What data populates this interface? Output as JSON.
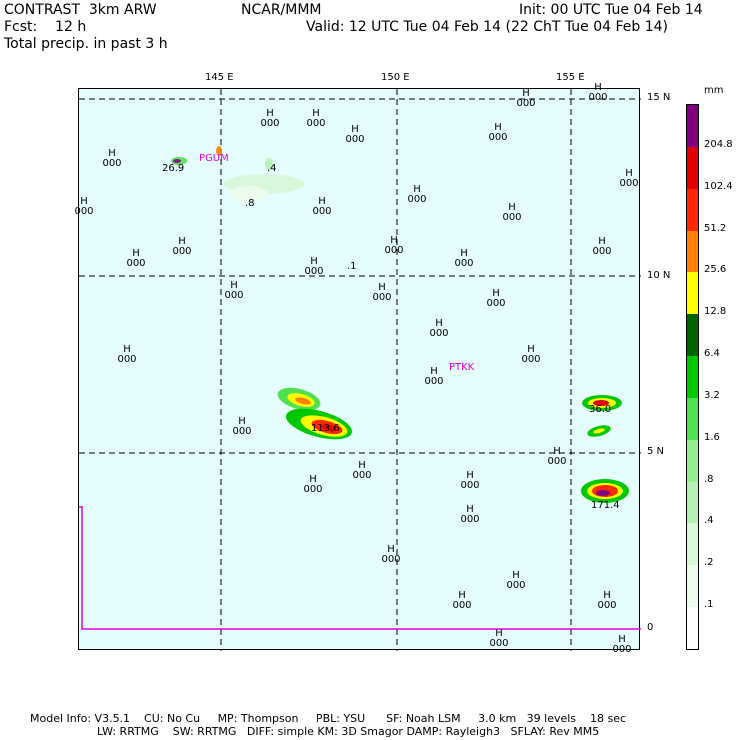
{
  "header": {
    "model": "CONTRAST  3km ARW",
    "center": "NCAR/MMM",
    "init": "Init: 00 UTC Tue 04 Feb 14",
    "fcst": "Fcst:    12 h",
    "valid": "Valid: 12 UTC Tue 04 Feb 14 (22 ChT Tue 04 Feb 14)",
    "field": "Total precip. in past 3 h"
  },
  "axes": {
    "lon_ticks": [
      "145 E",
      "150 E",
      "155 E"
    ],
    "lat_ticks": [
      "15 N",
      "10 N",
      "5 N",
      "0"
    ]
  },
  "stations": [
    {
      "name": "PGUM",
      "color": "#e000e0"
    },
    {
      "name": "PTKK",
      "color": "#e000e0"
    }
  ],
  "precip_values": [
    "26.9",
    ".4",
    ".8",
    ".1",
    "113.6",
    "36.0",
    "171.4"
  ],
  "pressure_labels": {
    "symbol": "H",
    "value": "000"
  },
  "legend": {
    "unit": "mm",
    "levels": [
      "204.8",
      "102.4",
      "51.2",
      "25.6",
      "12.8",
      "6.4",
      "3.2",
      "1.6",
      ".8",
      ".4",
      ".2",
      ".1"
    ],
    "colors": [
      "#800080",
      "#e00000",
      "#ff2800",
      "#ff8000",
      "#ffff00",
      "#006400",
      "#00c800",
      "#50e050",
      "#90ee90",
      "#b4f0b4",
      "#d8f8d8",
      "#ecfcec",
      "#ffffff"
    ]
  },
  "footer": {
    "line1": "Model Info: V3.5.1    CU: No Cu     MP: Thompson     PBL: YSU      SF: Noah LSM     3.0 km   39 levels    18 sec",
    "line2": "LW: RRTMG    SW: RRTMG   DIFF: simple KM: 3D Smagor DAMP: Rayleigh3   SFLAY: Rev MM5"
  }
}
